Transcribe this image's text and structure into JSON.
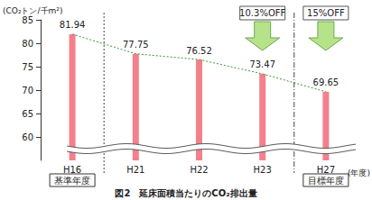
{
  "chart_data": {
    "type": "bar",
    "title": "図2　延床面積当たりのCO₂排出量",
    "y_label": "(CO₂トン/千m²)",
    "x_label": "(年度)",
    "categories": [
      "H16",
      "H21",
      "H22",
      "H23",
      "H27"
    ],
    "series": [
      {
        "type": "bar",
        "color": "#f4808c",
        "values": [
          81.94,
          77.75,
          76.52,
          73.47,
          69.65
        ]
      },
      {
        "type": "line",
        "color": "#3a9a3a",
        "line_style": "dotted",
        "values": [
          81.94,
          77.75,
          76.52,
          73.47,
          69.65
        ]
      }
    ],
    "ylim": [
      55,
      85
    ],
    "yticks": [
      60,
      65,
      70,
      75,
      80,
      85
    ],
    "grid": false,
    "data_labels": true,
    "annotations": [
      {
        "text": "10.3%OFF",
        "category": "H23"
      },
      {
        "text": "15%OFF",
        "category": "H27"
      }
    ],
    "category_notes": [
      {
        "text": "基準年度",
        "category": "H16"
      },
      {
        "text": "目標年度",
        "category": "H27"
      }
    ]
  }
}
